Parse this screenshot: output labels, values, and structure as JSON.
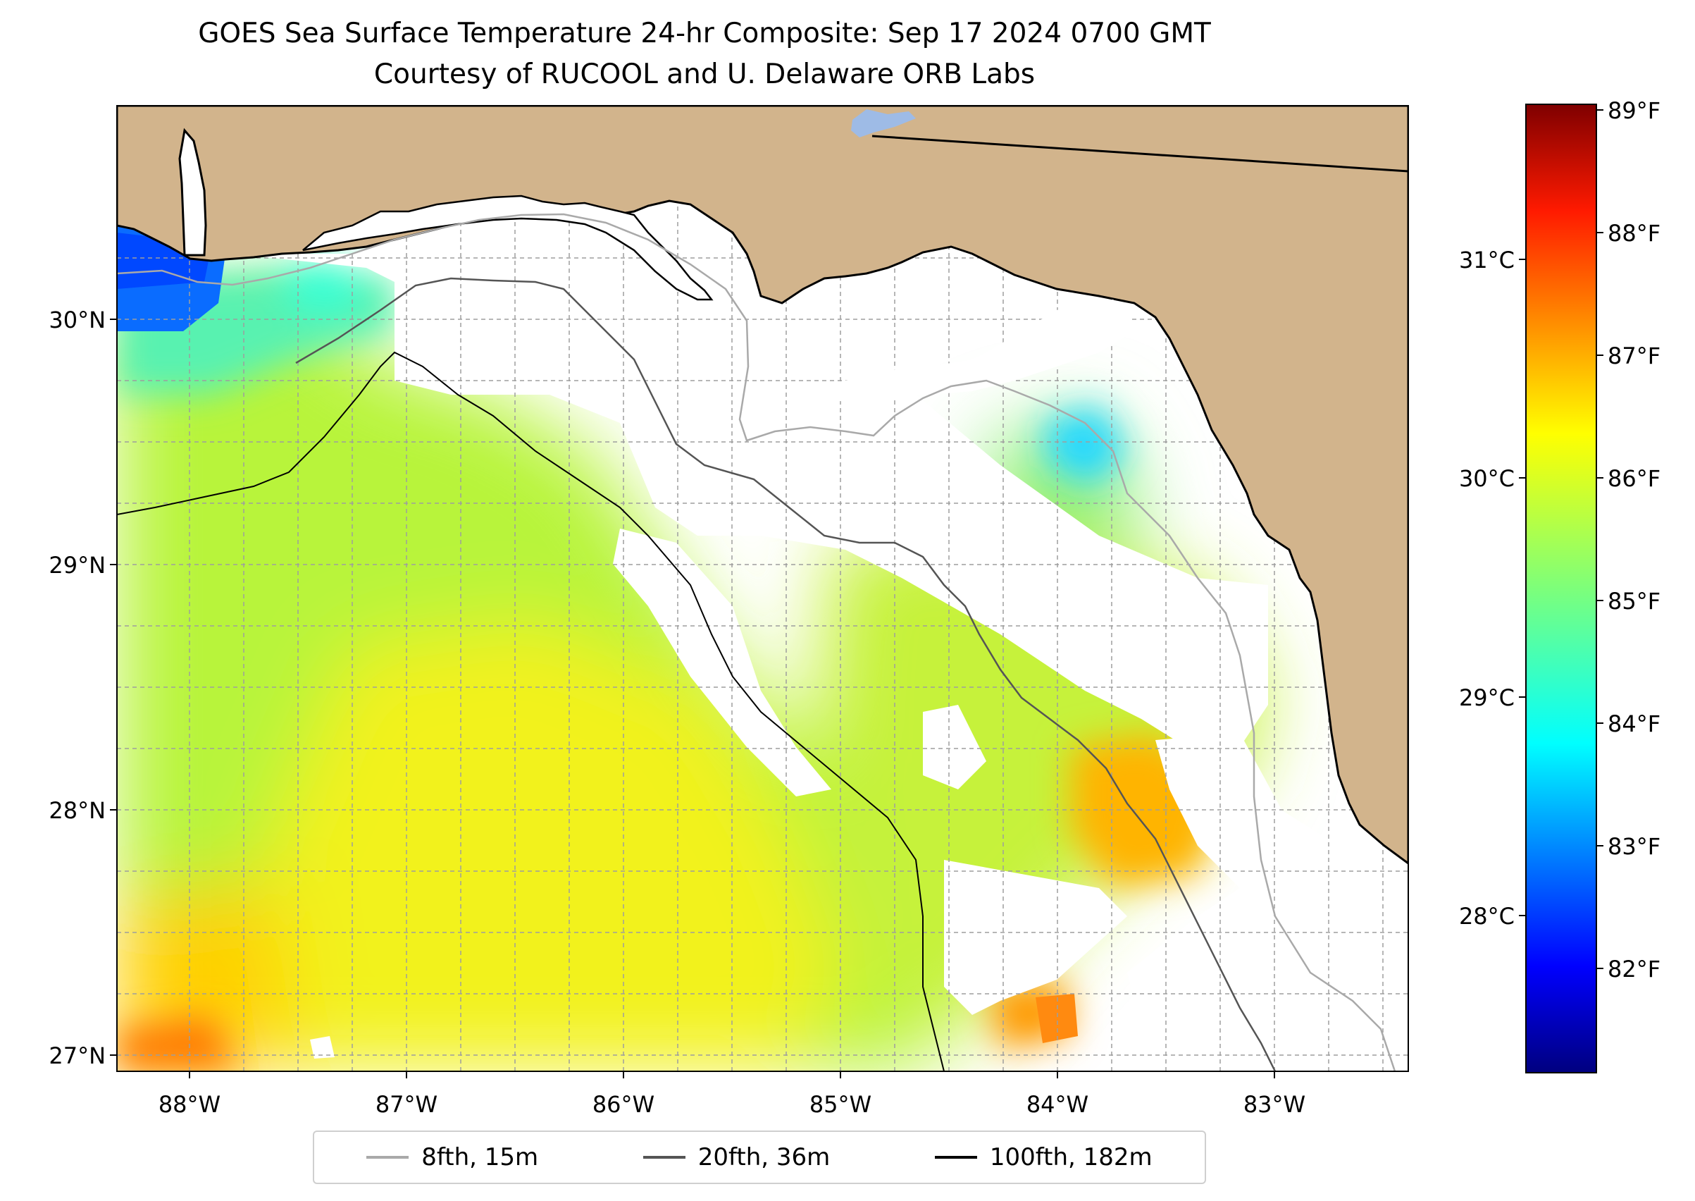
{
  "title": "GOES Sea Surface Temperature 24-hr Composite: Sep 17 2024 0700 GMT",
  "subtitle": "Courtesy of RUCOOL and U. Delaware ORB Labs",
  "map": {
    "lon_range": [
      -88.33,
      -82.38
    ],
    "lat_range": [
      26.93,
      30.85
    ],
    "lon_ticks": [
      "88°W",
      "87°W",
      "86°W",
      "85°W",
      "84°W",
      "83°W"
    ],
    "lat_ticks": [
      "27°N",
      "28°N",
      "29°N",
      "30°N"
    ],
    "land_color": "#d2b48c",
    "grid": true
  },
  "colorbar": {
    "colormap": "jet",
    "range_f": [
      81.2,
      89.1
    ],
    "fahrenheit_ticks": [
      "82°F",
      "83°F",
      "84°F",
      "85°F",
      "86°F",
      "87°F",
      "88°F",
      "89°F"
    ],
    "celsius_ticks": [
      "28°C",
      "29°C",
      "30°C",
      "31°C"
    ]
  },
  "legend": {
    "items": [
      {
        "label": "8fth, 15m",
        "color": "#a9a9a9"
      },
      {
        "label": "20fth, 36m",
        "color": "#555555"
      },
      {
        "label": "100fth, 182m",
        "color": "#000000"
      }
    ]
  }
}
